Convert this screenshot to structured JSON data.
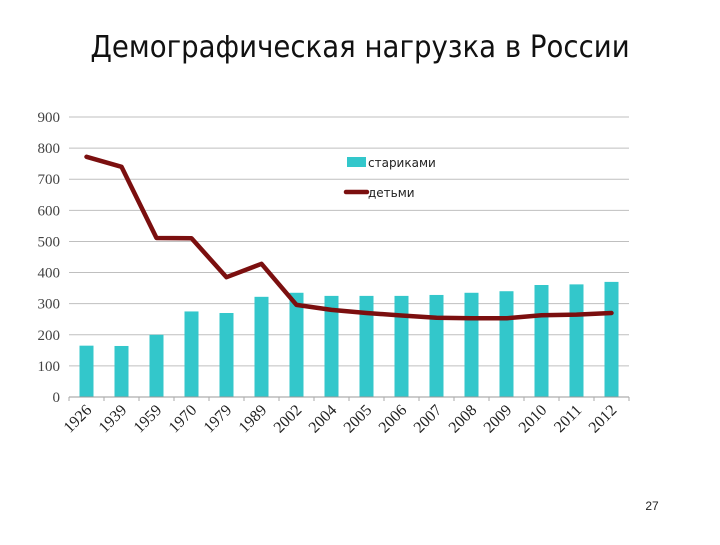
{
  "slide": {
    "title": "Демографическая нагрузка в России",
    "page_number": "27"
  },
  "colors": {
    "bars": "#33C7CB",
    "line": "#7B0F0F",
    "grid": "#BFBFBF",
    "axis_text": "#444444"
  },
  "legend": {
    "items": [
      {
        "label": "стариками",
        "type": "bar"
      },
      {
        "label": "детьми",
        "type": "line"
      }
    ]
  },
  "chart_data": {
    "type": "bar",
    "title": "Демографическая нагрузка в России",
    "xlabel": "",
    "ylabel": "",
    "ylim": [
      0,
      900
    ],
    "yticks": [
      0,
      100,
      200,
      300,
      400,
      500,
      600,
      700,
      800,
      900
    ],
    "grid": true,
    "legend_position": "upper-center",
    "categories": [
      "1926",
      "1939",
      "1959",
      "1970",
      "1979",
      "1989",
      "2002",
      "2004",
      "2005",
      "2006",
      "2007",
      "2008",
      "2009",
      "2010",
      "2011",
      "2012"
    ],
    "series": [
      {
        "name": "стариками",
        "type": "bar",
        "values": [
          165,
          164,
          200,
          275,
          270,
          322,
          335,
          325,
          325,
          325,
          328,
          335,
          340,
          360,
          362,
          370
        ]
      },
      {
        "name": "детьми",
        "type": "line",
        "values": [
          772,
          740,
          511,
          510,
          385,
          428,
          296,
          280,
          270,
          262,
          255,
          253,
          253,
          263,
          265,
          270
        ]
      }
    ]
  }
}
